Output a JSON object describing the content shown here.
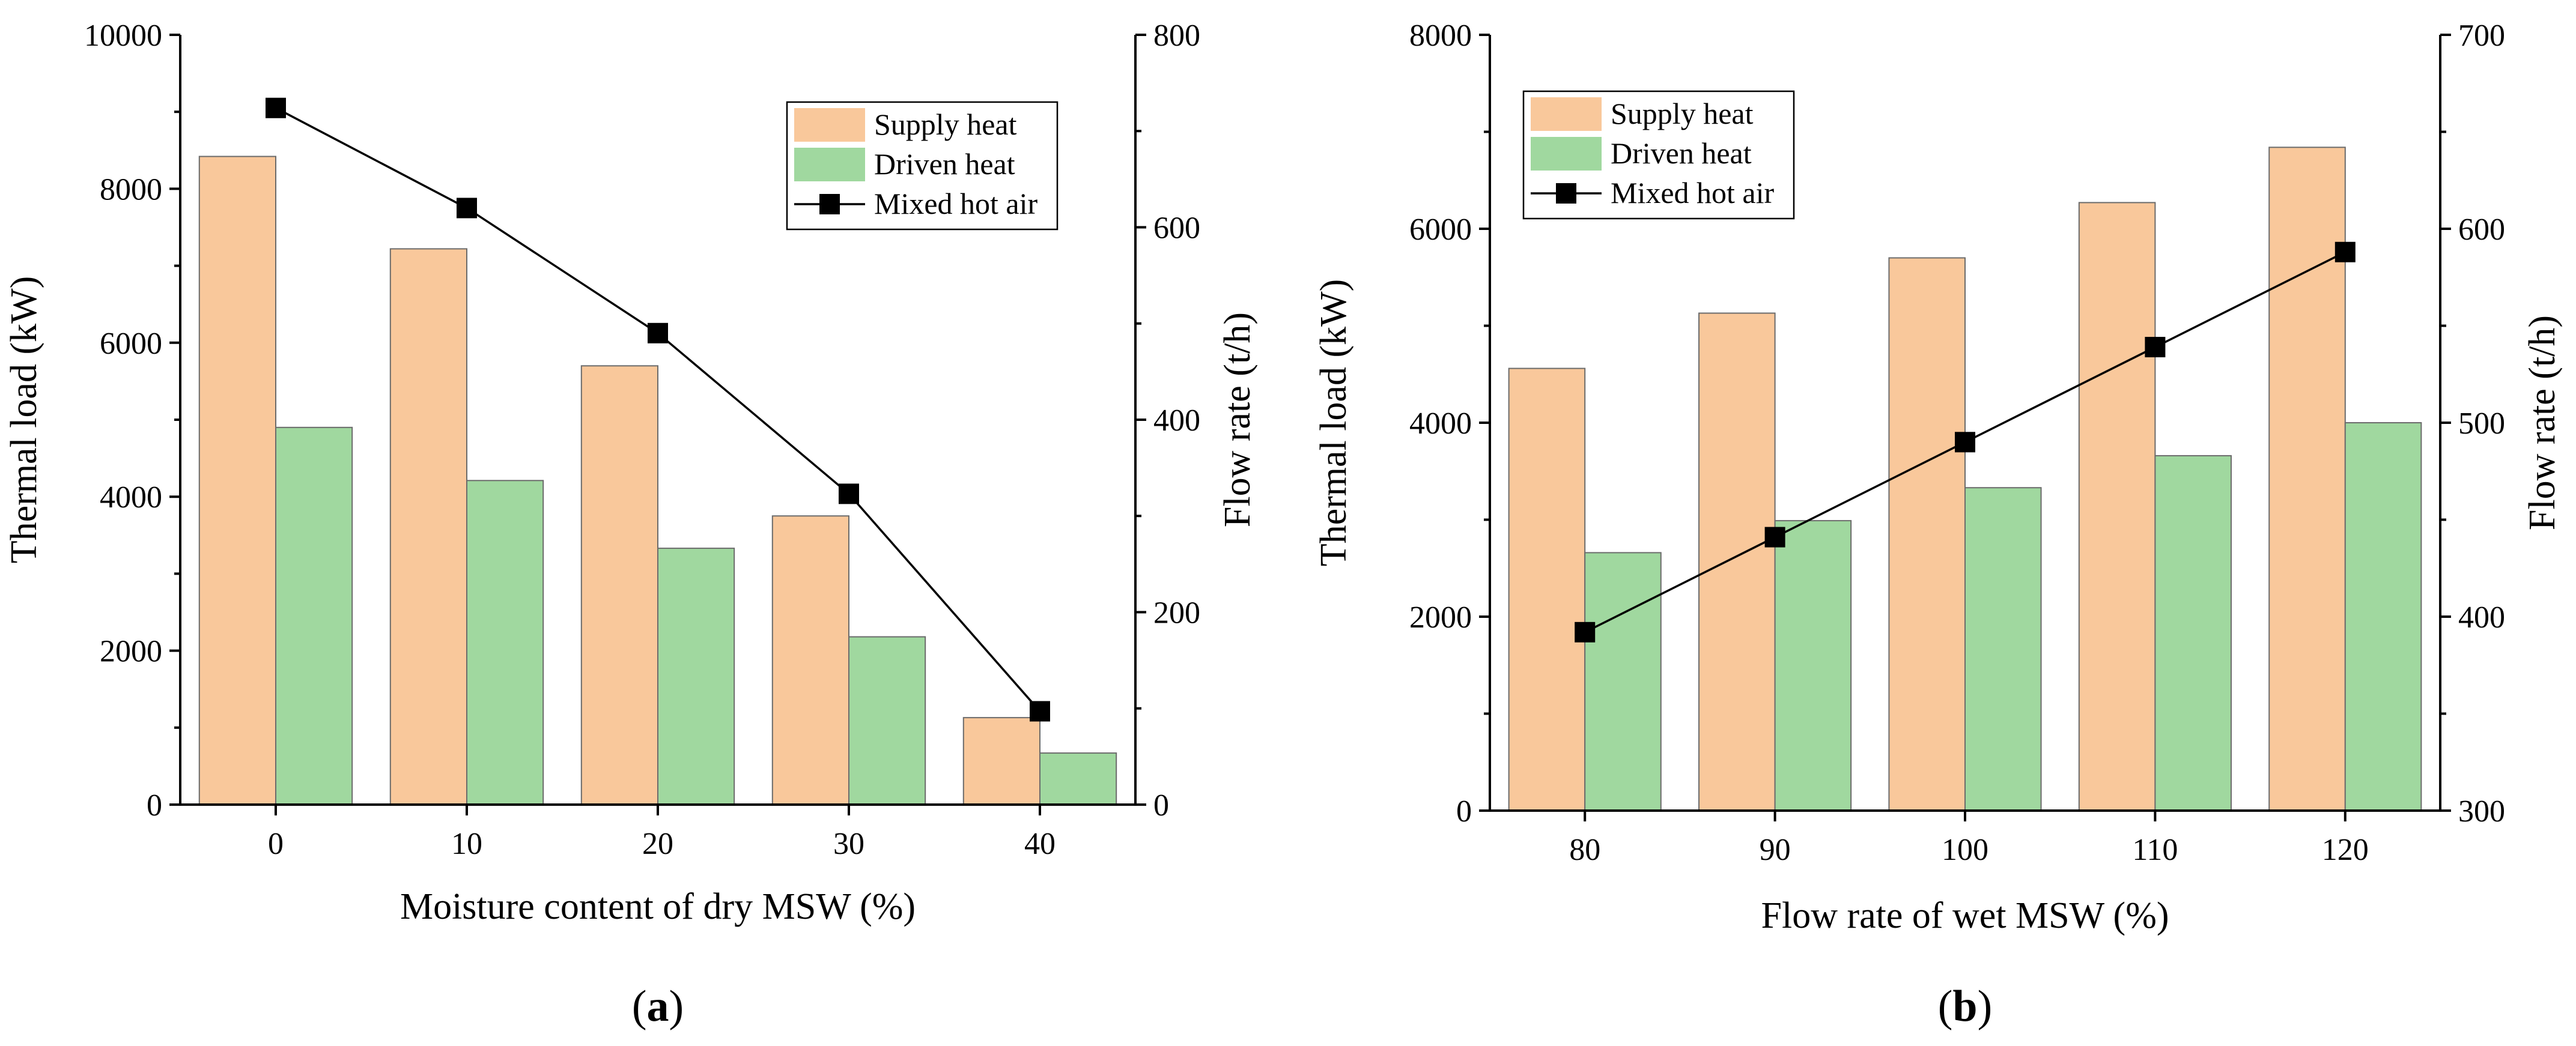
{
  "chart_data": [
    {
      "type": "bar",
      "panel_label": "(a)",
      "panel_letter": "a",
      "xlabel": "Moisture content of dry MSW (%)",
      "ylabel": "Thermal load (kW)",
      "y2label": "Flow rate (t/h)",
      "categories": [
        "0",
        "10",
        "20",
        "30",
        "40"
      ],
      "ylim": [
        0,
        10000
      ],
      "yticks": [
        "0",
        "2000",
        "4000",
        "6000",
        "8000",
        "10000"
      ],
      "y2lim": [
        0,
        800
      ],
      "y2ticks": [
        "0",
        "200",
        "400",
        "600",
        "800"
      ],
      "legend_position": "top-right",
      "series": [
        {
          "name": "Supply heat",
          "kind": "bar",
          "axis": "left",
          "color": "#f9c89b",
          "values": [
            8420,
            7220,
            5700,
            3750,
            1130
          ]
        },
        {
          "name": "Driven heat",
          "kind": "bar",
          "axis": "left",
          "color": "#a0d89f",
          "values": [
            4900,
            4210,
            3330,
            2180,
            670
          ]
        },
        {
          "name": "Mixed hot air",
          "kind": "line",
          "axis": "right",
          "color": "#000000",
          "values": [
            724,
            620,
            490,
            323,
            97
          ]
        }
      ]
    },
    {
      "type": "bar",
      "panel_label": "(b)",
      "panel_letter": "b",
      "xlabel": "Flow rate of wet MSW (%)",
      "ylabel": "Thermal load (kW)",
      "y2label": "Flow rate (t/h)",
      "categories": [
        "80",
        "90",
        "100",
        "110",
        "120"
      ],
      "ylim": [
        0,
        8000
      ],
      "yticks": [
        "0",
        "2000",
        "4000",
        "6000",
        "8000"
      ],
      "y2lim": [
        300,
        700
      ],
      "y2ticks": [
        "300",
        "400",
        "500",
        "600",
        "700"
      ],
      "legend_position": "top-left",
      "series": [
        {
          "name": "Supply heat",
          "kind": "bar",
          "axis": "left",
          "color": "#f9c89b",
          "values": [
            4560,
            5130,
            5700,
            6270,
            6840
          ]
        },
        {
          "name": "Driven heat",
          "kind": "bar",
          "axis": "left",
          "color": "#a0d89f",
          "values": [
            2660,
            2990,
            3330,
            3660,
            4000
          ]
        },
        {
          "name": "Mixed hot air",
          "kind": "line",
          "axis": "right",
          "color": "#000000",
          "values": [
            392,
            441,
            490,
            539,
            588
          ]
        }
      ]
    }
  ]
}
